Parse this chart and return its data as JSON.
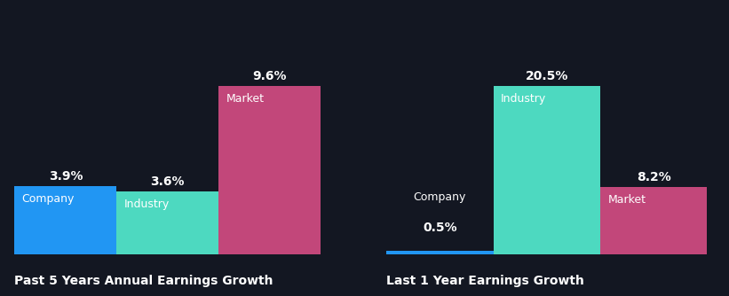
{
  "background_color": "#131722",
  "chart1": {
    "title": "Past 5 Years Annual Earnings Growth",
    "bars": [
      {
        "label": "Company",
        "value": 3.9,
        "color": "#2196F3"
      },
      {
        "label": "Industry",
        "value": 3.6,
        "color": "#4DD9C0"
      },
      {
        "label": "Market",
        "value": 9.6,
        "color": "#C2477A"
      }
    ]
  },
  "chart2": {
    "title": "Last 1 Year Earnings Growth",
    "bars": [
      {
        "label": "Company",
        "value": 0.5,
        "color": "#2196F3"
      },
      {
        "label": "Industry",
        "value": 20.5,
        "color": "#4DD9C0"
      },
      {
        "label": "Market",
        "value": 8.2,
        "color": "#C2477A"
      }
    ]
  },
  "label_fontsize": 9,
  "value_fontsize": 10,
  "title_fontsize": 10,
  "label_color": "#ffffff",
  "title_color": "#ffffff"
}
